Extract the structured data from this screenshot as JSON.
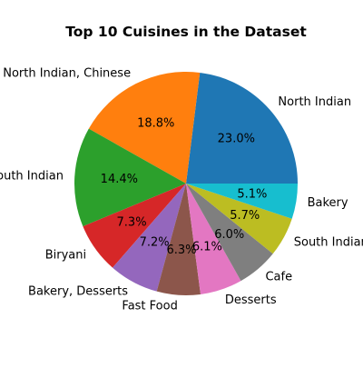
{
  "chart_data": {
    "type": "pie",
    "title": "Top 10 Cuisines in the Dataset",
    "labels": [
      "North Indian",
      "North Indian, Chinese",
      "South Indian",
      "Biryani",
      "Bakery, Desserts",
      "Fast Food",
      "Desserts",
      "Cafe",
      "South Indian",
      "Bakery"
    ],
    "values": [
      23.0,
      18.8,
      14.4,
      7.3,
      7.2,
      6.3,
      6.1,
      6.0,
      5.7,
      5.1
    ],
    "pct_labels": [
      "23.0%",
      "18.8%",
      "14.4%",
      "7.3%",
      "7.2%",
      "6.3%",
      "6.1%",
      "6.0%",
      "5.7%",
      "5.1%"
    ],
    "colors": [
      "#1f77b4",
      "#ff7f0e",
      "#2ca02c",
      "#d62728",
      "#9467bd",
      "#8c564b",
      "#e377c2",
      "#7f7f7f",
      "#bcbd22",
      "#17becf"
    ],
    "start_angle_deg": 0,
    "direction": "counterclockwise",
    "legend": "none"
  }
}
